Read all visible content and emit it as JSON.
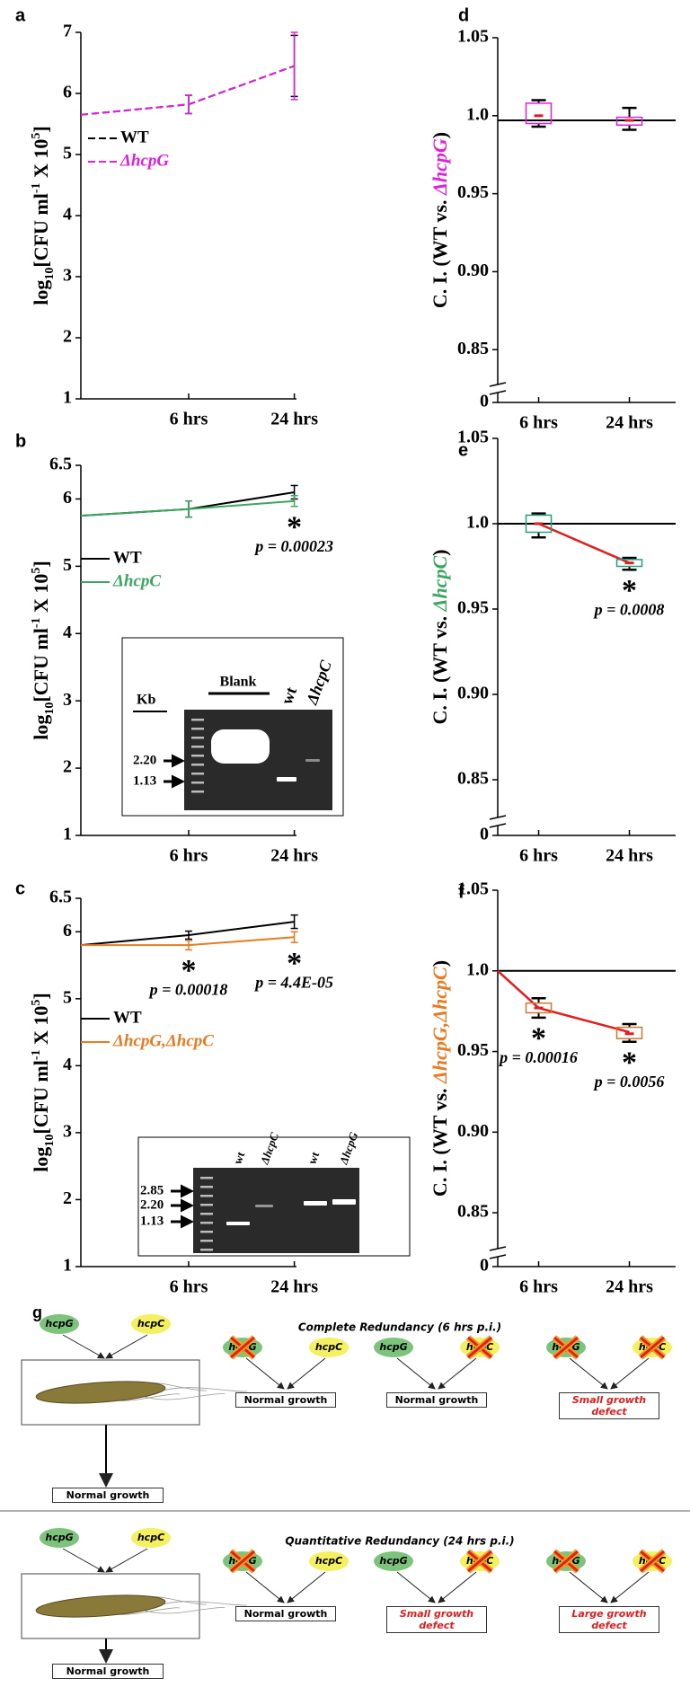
{
  "chart_data": [
    {
      "type": "line",
      "label": "a",
      "ylabel": [
        "log",
        "10",
        "[CFU ml",
        "-1",
        " X 10",
        "5",
        "]"
      ],
      "categories": [
        null,
        "6 hrs",
        "24 hrs"
      ],
      "ylim": [
        1,
        7
      ],
      "yticks": [
        1,
        2,
        3,
        4,
        5,
        6,
        7
      ],
      "series": [
        {
          "name": "WT",
          "color": "#000000",
          "dash": true,
          "italic": false,
          "values": [
            5.65,
            5.82,
            6.45
          ],
          "errors": [
            null,
            0.15,
            0.5
          ]
        },
        {
          "name": "ΔhcpG",
          "color": "#e020e0",
          "dash": true,
          "italic": true,
          "values": [
            5.65,
            5.82,
            6.45
          ],
          "errors": [
            null,
            0.15,
            0.55
          ]
        }
      ]
    },
    {
      "type": "line",
      "label": "b",
      "ylabel": [
        "log",
        "10",
        "[CFU ml",
        "-1",
        " X 10",
        "5",
        "]"
      ],
      "categories": [
        null,
        "6 hrs",
        "24 hrs"
      ],
      "ylim": [
        1,
        6.5
      ],
      "yticks": [
        1,
        2,
        3,
        4,
        5,
        6,
        6.5
      ],
      "series": [
        {
          "name": "WT",
          "color": "#000000",
          "dash": false,
          "italic": false,
          "values": [
            5.75,
            5.85,
            6.1
          ],
          "errors": [
            null,
            0.12,
            0.1
          ]
        },
        {
          "name": "ΔhcpC",
          "color": "#3aa660",
          "dash": false,
          "italic": true,
          "values": [
            5.75,
            5.85,
            5.97
          ],
          "errors": [
            null,
            0.12,
            0.08
          ]
        }
      ],
      "significance": [
        null,
        null,
        {
          "mark": "*",
          "text": "p = 0.00023"
        }
      ],
      "inset": {
        "kb": "Kb",
        "sizes": [
          "2.20",
          "1.13"
        ],
        "title": "Blank",
        "lanes": [
          "wt",
          "ΔhcpC"
        ]
      }
    },
    {
      "type": "line",
      "label": "c",
      "ylabel": [
        "log",
        "10",
        "[CFU ml",
        "-1",
        " X 10",
        "5",
        "]"
      ],
      "categories": [
        null,
        "6 hrs",
        "24 hrs"
      ],
      "ylim": [
        1,
        6.5
      ],
      "yticks": [
        1,
        2,
        3,
        4,
        5,
        6,
        6.5
      ],
      "series": [
        {
          "name": "WT",
          "color": "#000000",
          "dash": false,
          "italic": false,
          "values": [
            5.8,
            5.95,
            6.15
          ],
          "errors": [
            null,
            0.06,
            0.1
          ]
        },
        {
          "name": "ΔhcpG,ΔhcpC",
          "color": "#e87a20",
          "dash": false,
          "italic": true,
          "values": [
            5.8,
            5.8,
            5.92
          ],
          "errors": [
            null,
            0.07,
            0.08
          ]
        }
      ],
      "significance": [
        null,
        {
          "mark": "*",
          "text": "p = 0.00018"
        },
        {
          "mark": "*",
          "text": "p = 4.4E-05"
        }
      ],
      "inset": {
        "sizes": [
          "2.85",
          "2.20",
          "1.13"
        ],
        "lanes": [
          "wt",
          "ΔhcpC",
          "wt",
          "ΔhcpG"
        ]
      }
    },
    {
      "type": "box",
      "label": "d",
      "ylabel": [
        "C. I. (WT vs. ",
        "ΔhcpG",
        ")"
      ],
      "ylabel_color": "#e020e0",
      "categories": [
        null,
        "6 hrs",
        "24 hrs"
      ],
      "ylim": [
        0,
        1.05
      ],
      "axis_break": [
        0,
        0.83
      ],
      "yticks": [
        0,
        0.85,
        {
          "value": 0.9,
          "label": "0.90"
        },
        0.95,
        {
          "value": 1,
          "label": "1.0"
        },
        1.05
      ],
      "hline": 0.997,
      "box": {
        "color": "#e020e0",
        "median_color": "#e02020",
        "low": [
          null,
          0.993,
          0.991
        ],
        "q1": [
          null,
          0.995,
          0.994
        ],
        "median": [
          null,
          1.0,
          0.997
        ],
        "q3": [
          null,
          1.008,
          0.999
        ],
        "high": [
          null,
          1.01,
          1.005
        ]
      }
    },
    {
      "type": "box",
      "label": "e",
      "ylabel": [
        "C. I. (WT vs. ",
        "ΔhcpC",
        ")"
      ],
      "ylabel_color": "#3aa660",
      "categories": [
        null,
        "6 hrs",
        "24 hrs"
      ],
      "ylim": [
        0,
        1.05
      ],
      "axis_break": [
        0,
        0.83
      ],
      "yticks": [
        0,
        0.85,
        {
          "value": 0.9,
          "label": "0.90"
        },
        0.95,
        {
          "value": 1,
          "label": "1.0"
        },
        1.05
      ],
      "hline": 1,
      "box": {
        "color": "#20a080",
        "median_color": "#e02020",
        "low": [
          null,
          0.992,
          0.973
        ],
        "q1": [
          null,
          0.995,
          0.975
        ],
        "median": [
          null,
          1.0,
          0.977
        ],
        "q3": [
          null,
          1.005,
          0.979
        ],
        "high": [
          null,
          1.006,
          0.98
        ]
      },
      "mean_line": {
        "color": "#e02020",
        "values": [
          null,
          1.0,
          0.977
        ]
      },
      "significance": [
        null,
        null,
        {
          "mark": "*",
          "text": "p = 0.0008"
        }
      ]
    },
    {
      "type": "box",
      "label": "f",
      "ylabel": [
        "C. I. (WT vs. ",
        "ΔhcpG,ΔhcpC",
        ")"
      ],
      "ylabel_color": "#e87a20",
      "categories": [
        null,
        "6 hrs",
        "24 hrs"
      ],
      "ylim": [
        0,
        1.05
      ],
      "axis_break": [
        0,
        0.83
      ],
      "yticks": [
        0,
        0.85,
        {
          "value": 0.9,
          "label": "0.90"
        },
        0.95,
        {
          "value": 1,
          "label": "1.0"
        },
        1.05
      ],
      "hline": 1,
      "box": {
        "color": "#c87a30",
        "median_color": "#e02020",
        "low": [
          null,
          0.971,
          0.956
        ],
        "q1": [
          null,
          0.974,
          0.958
        ],
        "median": [
          null,
          0.977,
          0.961
        ],
        "q3": [
          null,
          0.98,
          0.965
        ],
        "high": [
          null,
          0.983,
          0.967
        ]
      },
      "mean_line": {
        "color": "#e02020",
        "values": [
          1.0,
          0.977,
          0.962
        ]
      },
      "significance": [
        null,
        {
          "mark": "*",
          "text": "p = 0.00016"
        },
        {
          "mark": "*",
          "text": "p = 0.0056"
        }
      ]
    }
  ],
  "diagram": {
    "label": "g",
    "rows": [
      {
        "title": "Complete Redundancy (6 hrs p.i.)",
        "genes": [
          "hcpG",
          "hcpC"
        ],
        "outcome": "Normal growth",
        "mutants": [
          {
            "knocked": [
              true,
              false
            ],
            "outcome": "Normal growth"
          },
          {
            "knocked": [
              false,
              true
            ],
            "outcome": "Normal growth"
          },
          {
            "knocked": [
              true,
              true
            ],
            "outcome": "Small growth defect",
            "color": "#e02020"
          }
        ]
      },
      {
        "title": "Quantitative Redundancy (24 hrs p.i.)",
        "genes": [
          "hcpG",
          "hcpC"
        ],
        "outcome": "Normal growth",
        "mutants": [
          {
            "knocked": [
              true,
              false
            ],
            "outcome": "Normal growth"
          },
          {
            "knocked": [
              false,
              true
            ],
            "outcome": "Small growth defect",
            "color": "#e02020"
          },
          {
            "knocked": [
              true,
              true
            ],
            "outcome": "Large growth defect",
            "color": "#e02020"
          }
        ]
      }
    ]
  }
}
